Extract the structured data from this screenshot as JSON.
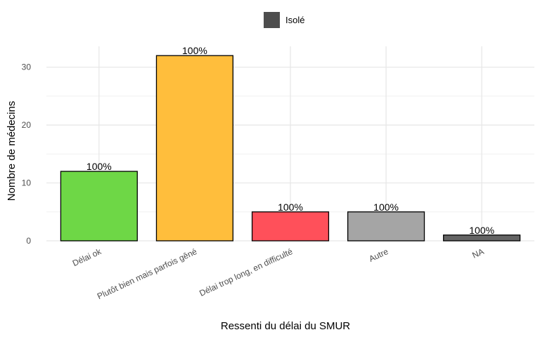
{
  "legend": {
    "label": "Isolé",
    "color": "#4d4d4d"
  },
  "chart_data": {
    "type": "bar",
    "xlabel": "Ressenti du délai du SMUR",
    "ylabel": "Nombre de médecins",
    "ylim": [
      0,
      33.6
    ],
    "yticks": [
      0,
      10,
      20,
      30
    ],
    "grid": true,
    "legend_position": "top",
    "series": [
      {
        "name": "Isolé",
        "values": [
          12,
          32,
          5,
          5,
          1
        ]
      }
    ],
    "bars": [
      {
        "category": "Délai ok",
        "value": 12,
        "label": "100%",
        "color": "#6ed746"
      },
      {
        "category": "Plutôt bien mais parfois gêné",
        "value": 32,
        "label": "100%",
        "color": "#ffbe3c"
      },
      {
        "category": "Délai trop long, en difficulté",
        "value": 5,
        "label": "100%",
        "color": "#ff505a"
      },
      {
        "category": "Autre",
        "value": 5,
        "label": "100%",
        "color": "#a5a5a5"
      },
      {
        "category": "NA",
        "value": 1,
        "label": "100%",
        "color": "#646464"
      }
    ]
  }
}
